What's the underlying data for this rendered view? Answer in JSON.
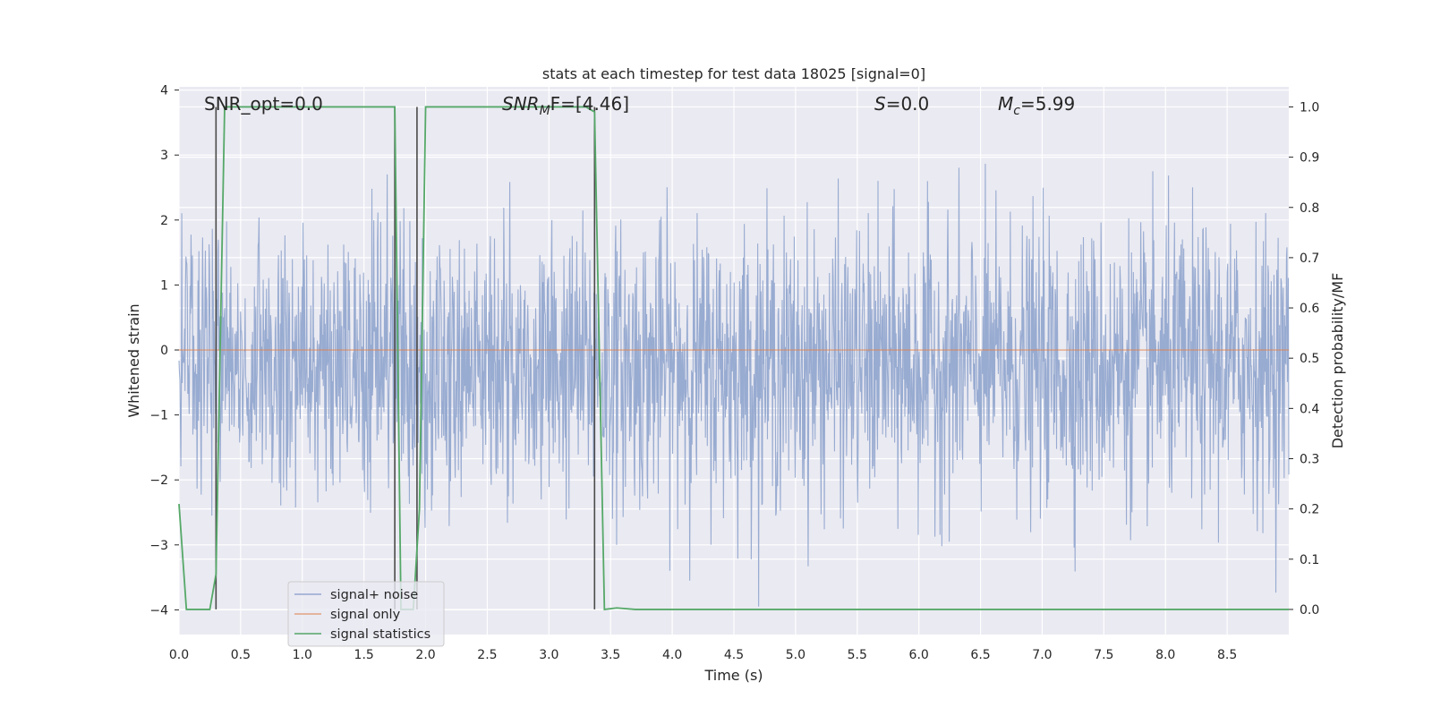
{
  "chart_data": {
    "type": "line",
    "title": "stats at each timestep for test data 18025 [signal=0]",
    "xlabel": "Time (s)",
    "ylabel_left": "Whitened strain",
    "ylabel_right": "Detection probability/MF",
    "xlim": [
      0.0,
      9.0
    ],
    "ylim_left": [
      -4.38,
      4.05
    ],
    "ylim_right": [
      -0.05,
      1.04
    ],
    "grid": true,
    "x_ticks": [
      "0.0",
      "0.5",
      "1.0",
      "1.5",
      "2.0",
      "2.5",
      "3.0",
      "3.5",
      "4.0",
      "4.5",
      "5.0",
      "5.5",
      "6.0",
      "6.5",
      "7.0",
      "7.5",
      "8.0",
      "8.5"
    ],
    "y_left_ticks": [
      "4",
      "3",
      "2",
      "1",
      "0",
      "−1",
      "−2",
      "−3",
      "−4"
    ],
    "y_right_ticks": [
      "1.0",
      "0.9",
      "0.8",
      "0.7",
      "0.6",
      "0.5",
      "0.4",
      "0.3",
      "0.2",
      "0.1",
      "0.0"
    ],
    "annotations": {
      "snr_opt": "SNR_opt=0.0",
      "snr_mf_prefix": "SNR",
      "snr_mf_sub": "M",
      "snr_mf_suffix": "F=[4.46]",
      "s_prefix": "S",
      "s_suffix": "=0.0",
      "mc_prefix": "M",
      "mc_sub": "c",
      "mc_suffix": "=5.99"
    },
    "legend": {
      "location": "lower-left",
      "entries": [
        "signal+ noise",
        "signal only",
        "signal statistics"
      ]
    },
    "series": [
      {
        "name": "signal+ noise",
        "axis": "left",
        "description": "whitened strain noise, sampled at 2048 Hz, roughly gaussian with amplitude between about -4 and 3.4",
        "color": "#94a8cf"
      },
      {
        "name": "signal only",
        "axis": "left",
        "x": [
          0.0,
          9.0
        ],
        "y": [
          0.0,
          0.0
        ],
        "color": "#dd8452"
      },
      {
        "name": "signal statistics",
        "axis": "right",
        "color": "#55a868",
        "x": [
          0.0,
          0.06,
          0.1,
          0.25,
          0.3,
          0.37,
          0.4,
          1.6,
          1.75,
          1.8,
          1.9,
          1.95,
          2.0,
          3.3,
          3.37,
          3.45,
          3.55,
          3.7,
          9.0
        ],
        "y": [
          0.21,
          0.0,
          0.0,
          0.0,
          0.07,
          1.0,
          1.0,
          1.0,
          1.0,
          0.0,
          0.0,
          0.2,
          1.0,
          1.0,
          0.99,
          0.0,
          0.003,
          0.0,
          0.0
        ]
      }
    ],
    "vertical_markers": {
      "color": "#4a4a4a",
      "x": [
        0.3,
        1.75,
        1.93,
        3.37
      ],
      "y_right_range": [
        0.0,
        1.0
      ]
    }
  }
}
